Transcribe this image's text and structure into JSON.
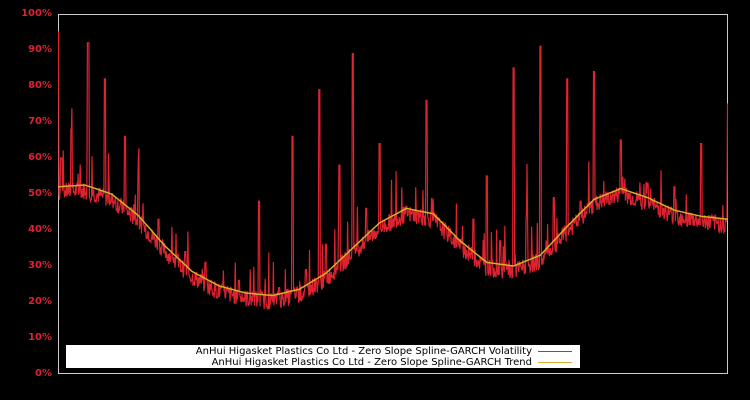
{
  "chart_data": {
    "type": "line",
    "title": "",
    "xlabel": "",
    "ylabel": "",
    "ylim": [
      0,
      100
    ],
    "y_ticks": [
      "0%",
      "10%",
      "20%",
      "30%",
      "40%",
      "50%",
      "60%",
      "70%",
      "80%",
      "90%",
      "100%"
    ],
    "x_ticks": [],
    "grid": false,
    "legend_position": "lower-center inside",
    "background": "#000000",
    "tick_color": "#dd2230",
    "series": [
      {
        "name": "AnHui Higasket Plastics Co Ltd - Zero Slope Spline-GARCH Volatility",
        "color": "#dd2230",
        "x_fraction": [
          0.0,
          0.005,
          0.01,
          0.02,
          0.03,
          0.045,
          0.06,
          0.07,
          0.08,
          0.1,
          0.11,
          0.12,
          0.14,
          0.15,
          0.17,
          0.19,
          0.2,
          0.22,
          0.25,
          0.27,
          0.29,
          0.3,
          0.33,
          0.35,
          0.37,
          0.39,
          0.4,
          0.42,
          0.44,
          0.46,
          0.48,
          0.5,
          0.52,
          0.54,
          0.55,
          0.57,
          0.6,
          0.62,
          0.64,
          0.66,
          0.68,
          0.7,
          0.72,
          0.74,
          0.76,
          0.78,
          0.8,
          0.82,
          0.84,
          0.86,
          0.88,
          0.9,
          0.92,
          0.94,
          0.96,
          0.98,
          1.0
        ],
        "values": [
          95,
          60,
          48,
          68,
          47,
          92,
          45,
          82,
          42,
          66,
          36,
          54,
          31,
          43,
          27,
          34,
          24,
          31,
          21,
          26,
          20,
          48,
          24,
          66,
          29,
          79,
          36,
          58,
          89,
          46,
          64,
          41,
          30,
          34,
          76,
          28,
          31,
          43,
          55,
          37,
          85,
          45,
          91,
          49,
          82,
          48,
          84,
          44,
          65,
          42,
          53,
          40,
          52,
          39,
          64,
          40,
          75
        ]
      },
      {
        "name": "AnHui Higasket Plastics Co Ltd - Zero Slope Spline-GARCH Trend",
        "color": "#d4b02a",
        "x_fraction": [
          0.0,
          0.04,
          0.08,
          0.12,
          0.16,
          0.2,
          0.24,
          0.28,
          0.32,
          0.36,
          0.4,
          0.44,
          0.48,
          0.52,
          0.56,
          0.6,
          0.64,
          0.68,
          0.72,
          0.76,
          0.8,
          0.84,
          0.88,
          0.92,
          0.96,
          1.0
        ],
        "values": [
          52,
          52.5,
          50,
          44,
          35.5,
          28.5,
          24.5,
          22.5,
          21.8,
          23.5,
          28,
          35,
          42,
          46,
          44.5,
          37,
          31,
          30,
          33,
          41,
          48.5,
          51.5,
          49,
          45.5,
          43.8,
          43
        ]
      }
    ]
  },
  "legend": {
    "items": [
      {
        "label": "AnHui Higasket Plastics Co Ltd - Zero Slope Spline-GARCH Volatility",
        "color": "#dd2230"
      },
      {
        "label": "AnHui Higasket Plastics Co Ltd - Zero Slope Spline-GARCH Trend",
        "color": "#d4b02a"
      }
    ]
  }
}
